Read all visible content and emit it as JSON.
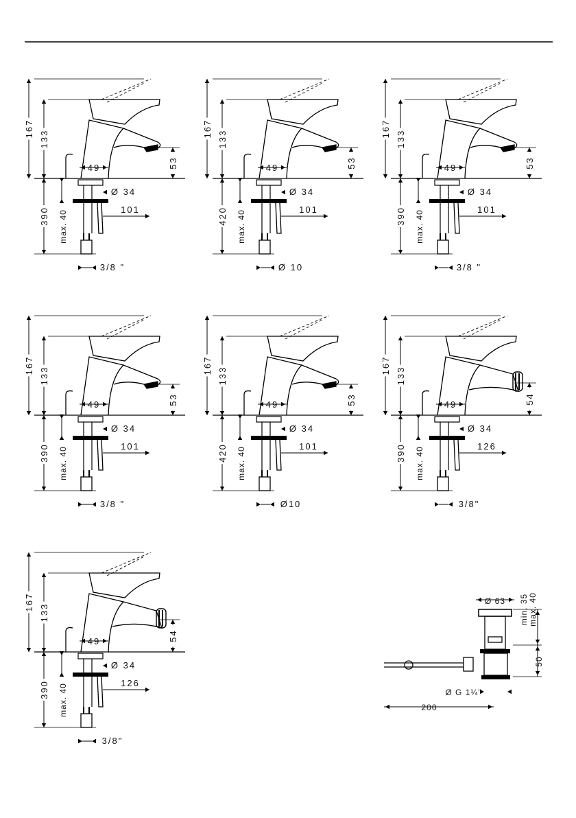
{
  "drawings": [
    {
      "id": "mixer-1",
      "h_total": "167",
      "h_body": "133",
      "spout_drop": "53",
      "body_width": "49",
      "hole_dia": "Ø 34",
      "reach": "101",
      "below": "390",
      "max_thick": "max. 40",
      "connection": "3/8 \""
    },
    {
      "id": "mixer-2",
      "h_total": "167",
      "h_body": "133",
      "spout_drop": "53",
      "body_width": "49",
      "hole_dia": "Ø 34",
      "reach": "101",
      "below": "420",
      "max_thick": "max. 40",
      "connection": "Ø 10"
    },
    {
      "id": "mixer-3",
      "h_total": "167",
      "h_body": "133",
      "spout_drop": "53",
      "body_width": "49",
      "hole_dia": "Ø 34",
      "reach": "101",
      "below": "390",
      "max_thick": "max. 40",
      "connection": "3/8 \""
    },
    {
      "id": "mixer-4",
      "h_total": "167",
      "h_body": "133",
      "spout_drop": "53",
      "body_width": "49",
      "hole_dia": "Ø 34",
      "reach": "101",
      "below": "390",
      "max_thick": "max. 40",
      "connection": "3/8 \""
    },
    {
      "id": "mixer-5",
      "h_total": "167",
      "h_body": "133",
      "spout_drop": "53",
      "body_width": "49",
      "hole_dia": "Ø 34",
      "reach": "101",
      "below": "420",
      "max_thick": "max. 40",
      "connection": "Ø10"
    },
    {
      "id": "bidet-1",
      "h_total": "167",
      "h_body": "133",
      "spout_drop": "54",
      "body_width": "49",
      "hole_dia": "Ø 34",
      "reach": "126",
      "below": "390",
      "max_thick": "max. 40",
      "connection": "3/8\""
    },
    {
      "id": "bidet-2",
      "h_total": "167",
      "h_body": "133",
      "spout_drop": "54",
      "body_width": "49",
      "hole_dia": "Ø 34",
      "reach": "126",
      "below": "390",
      "max_thick": "max. 40",
      "connection": "3/8\""
    }
  ],
  "waste": {
    "top_dia": "Ø 63",
    "min_label": "min. 35",
    "max_label": "max. 40",
    "height": "50",
    "thread": "Ø G 1¼\"",
    "length": "200"
  }
}
